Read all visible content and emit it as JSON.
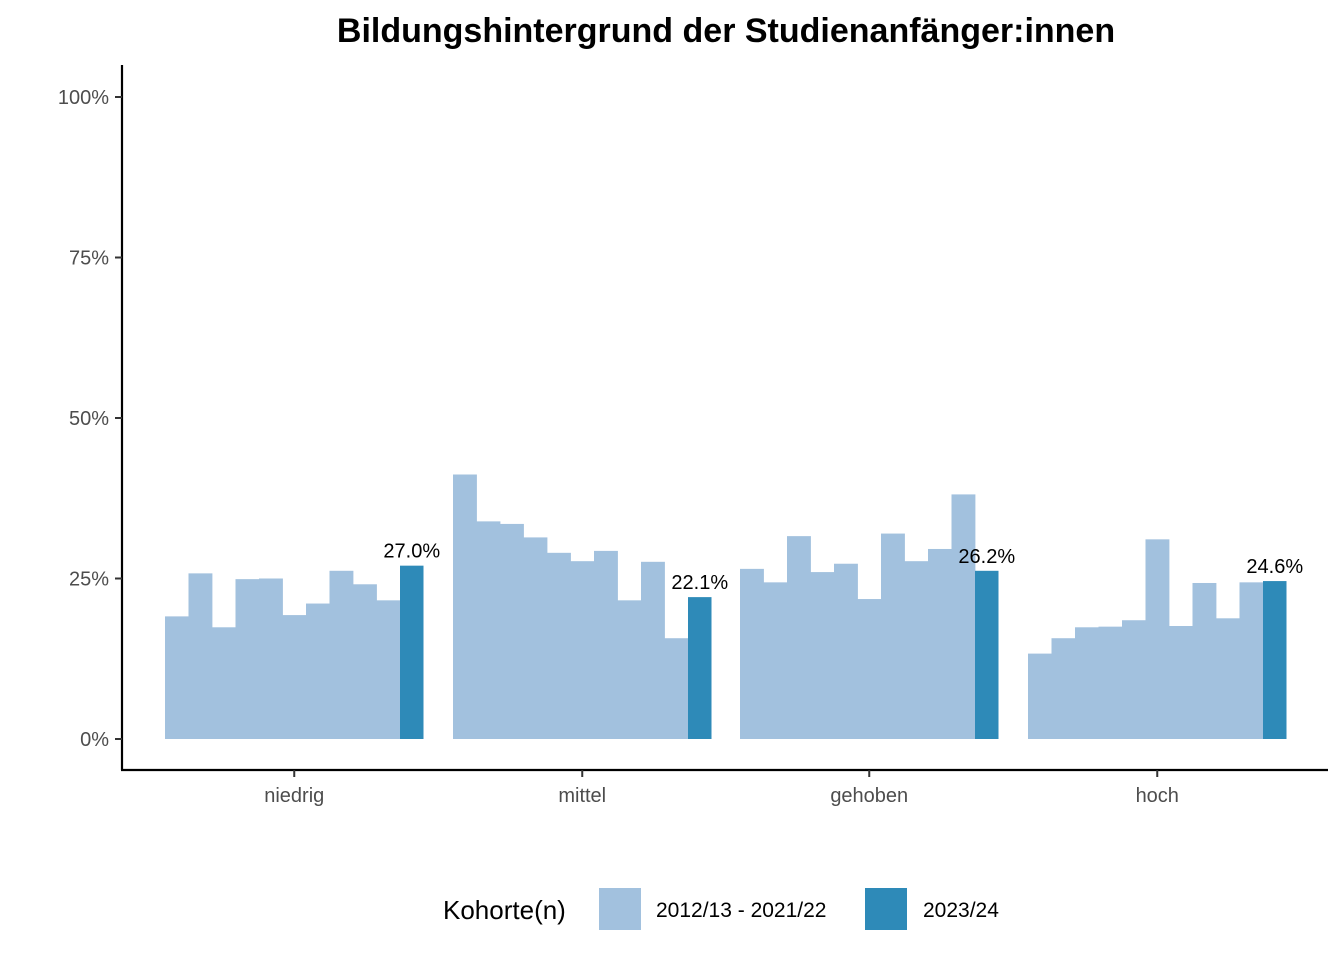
{
  "chart_data": {
    "type": "bar",
    "title": "Bildungshintergrund der Studienanfänger:innen",
    "xlabel": "",
    "ylabel": "",
    "ylim": [
      0,
      1.05
    ],
    "y_ticks": [
      0,
      0.25,
      0.5,
      0.75,
      1.0
    ],
    "y_tick_labels": [
      "0%",
      "25%",
      "50%",
      "75%",
      "100%"
    ],
    "categories": [
      "niedrig",
      "mittel",
      "gehoben",
      "hoch"
    ],
    "grid": false,
    "legend_position": "bottom",
    "legend_title": "Kohorte(n)",
    "series": [
      {
        "name": "2012/13 - 2021/22",
        "color": "#a2c1de",
        "values": [
          [
            0.191,
            0.258,
            0.174,
            0.249,
            0.25,
            0.193,
            0.211,
            0.262,
            0.241,
            0.216
          ],
          [
            0.412,
            0.339,
            0.335,
            0.314,
            0.29,
            0.277,
            0.293,
            0.216,
            0.276,
            0.157
          ],
          [
            0.265,
            0.244,
            0.316,
            0.26,
            0.273,
            0.218,
            0.32,
            0.277,
            0.296,
            0.381
          ],
          [
            0.133,
            0.157,
            0.174,
            0.175,
            0.185,
            0.311,
            0.176,
            0.243,
            0.188,
            0.244
          ]
        ]
      },
      {
        "name": "2023/24",
        "color": "#2e8ab8",
        "values": [
          0.27,
          0.221,
          0.262,
          0.246
        ],
        "labels": [
          "27.0%",
          "22.1%",
          "26.2%",
          "24.6%"
        ]
      }
    ]
  }
}
